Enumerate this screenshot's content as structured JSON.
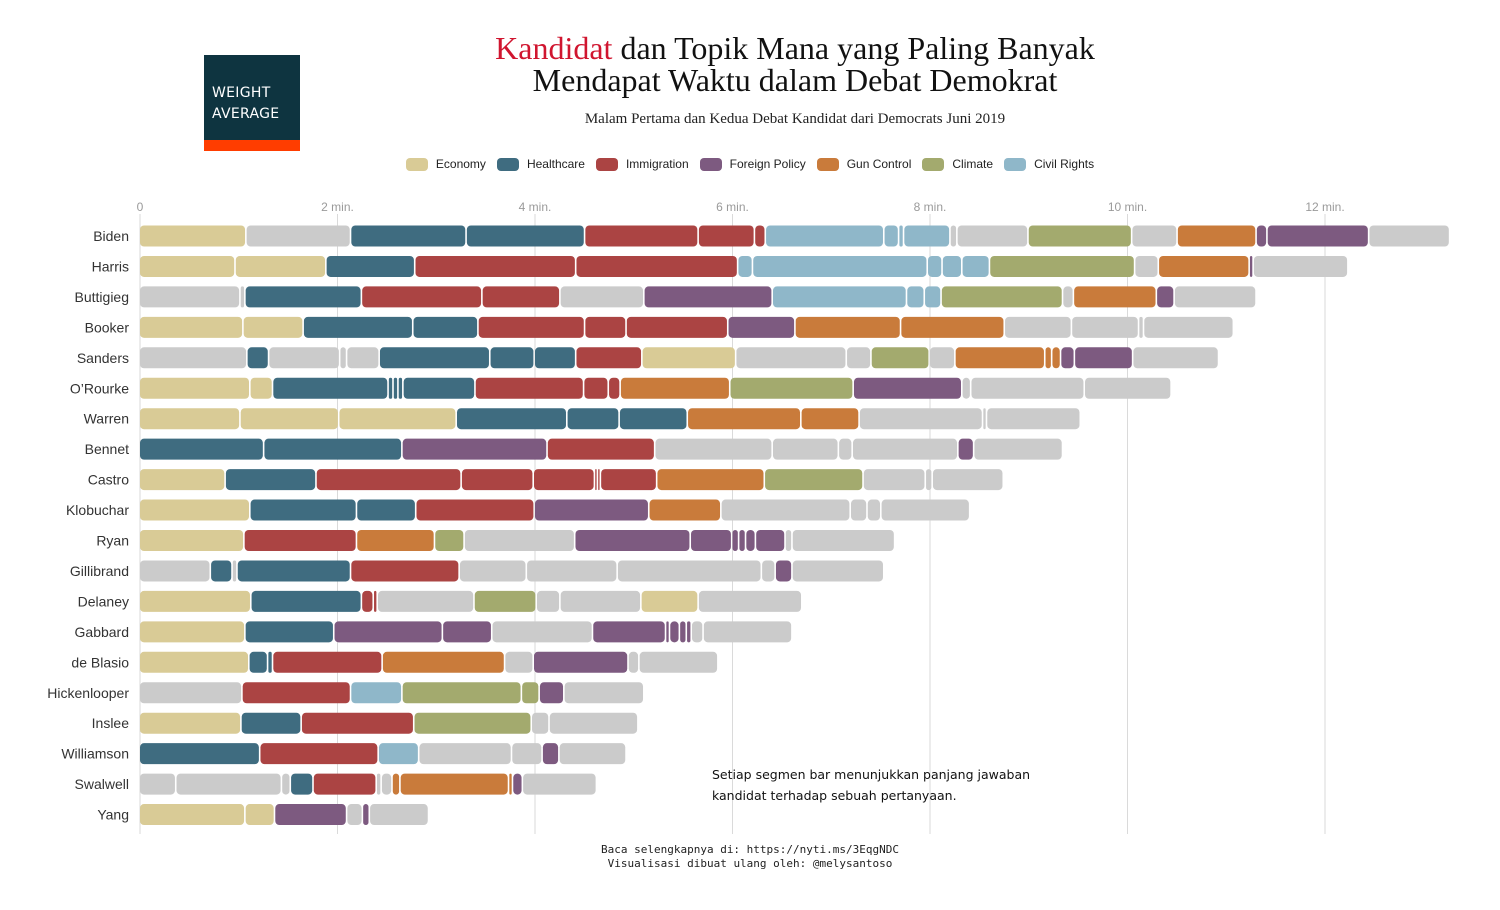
{
  "logo": {
    "line1": "WEIGHT",
    "line2": "AVERAGE"
  },
  "title": {
    "accent": "Kandidat",
    "rest": " dan Topik Mana yang Paling Banyak",
    "line2": "Mendapat Waktu dalam Debat Demokrat"
  },
  "subtitle": "Malam Pertama dan Kedua Debat Kandidat dari Democrats Juni 2019",
  "note": {
    "line1": "Setiap segmen bar menunjukkan panjang jawaban",
    "line2": "kandidat terhadap sebuah pertanyaan."
  },
  "footer": {
    "line1": "Baca selengkapnya di: https://nyti.ms/3EqgNDC",
    "line2": "Visualisasi dibuat ulang oleh: @melysantoso"
  },
  "chart_data": {
    "type": "bar",
    "orientation": "horizontal-stacked",
    "x_unit": "min.",
    "xlim": [
      0,
      13.3
    ],
    "x_ticks": [
      0,
      2,
      4,
      6,
      8,
      10,
      12
    ],
    "x_tick_labels": [
      "0",
      "2 min.",
      "4 min.",
      "6 min.",
      "8 min.",
      "10 min.",
      "12 min."
    ],
    "grid": true,
    "legend_position": "top",
    "topics": [
      {
        "key": "E",
        "name": "Economy",
        "color": "#d9cb96"
      },
      {
        "key": "H",
        "name": "Healthcare",
        "color": "#3f6c80"
      },
      {
        "key": "I",
        "name": "Immigration",
        "color": "#ab4443"
      },
      {
        "key": "F",
        "name": "Foreign Policy",
        "color": "#7d5a80"
      },
      {
        "key": "G",
        "name": "Gun Control",
        "color": "#c97b3b"
      },
      {
        "key": "C",
        "name": "Climate",
        "color": "#a3aa6e"
      },
      {
        "key": "R",
        "name": "Civil Rights",
        "color": "#8fb7c9"
      }
    ],
    "other_color": "#cbcbcb",
    "candidates": [
      {
        "name": "Biden",
        "segments": [
          [
            "E",
            1.08
          ],
          [
            "O",
            1.06
          ],
          [
            "H",
            1.17
          ],
          [
            "H",
            1.2
          ],
          [
            "I",
            1.15
          ],
          [
            "I",
            0.57
          ],
          [
            "I",
            0.11
          ],
          [
            "R",
            1.2
          ],
          [
            "R",
            0.15
          ],
          [
            "R",
            0.05
          ],
          [
            "R",
            0.47
          ],
          [
            "O",
            0.07
          ],
          [
            "O",
            0.72
          ],
          [
            "C",
            1.05
          ],
          [
            "O",
            0.46
          ],
          [
            "G",
            0.8
          ],
          [
            "F",
            0.11
          ],
          [
            "F",
            1.03
          ],
          [
            "O",
            0.82
          ]
        ]
      },
      {
        "name": "Harris",
        "segments": [
          [
            "E",
            0.97
          ],
          [
            "E",
            0.92
          ],
          [
            "H",
            0.9
          ],
          [
            "I",
            1.63
          ],
          [
            "I",
            1.64
          ],
          [
            "R",
            0.15
          ],
          [
            "R",
            1.77
          ],
          [
            "R",
            0.15
          ],
          [
            "R",
            0.2
          ],
          [
            "R",
            0.28
          ],
          [
            "C",
            1.47
          ],
          [
            "O",
            0.24
          ],
          [
            "G",
            0.92
          ],
          [
            "F",
            0.04
          ],
          [
            "O",
            0.96
          ]
        ]
      },
      {
        "name": "Buttigieg",
        "segments": [
          [
            "O",
            1.02
          ],
          [
            "O",
            0.05
          ],
          [
            "H",
            1.18
          ],
          [
            "I",
            1.22
          ],
          [
            "I",
            0.79
          ],
          [
            "O",
            0.85
          ],
          [
            "F",
            1.3
          ],
          [
            "R",
            1.36
          ],
          [
            "R",
            0.18
          ],
          [
            "R",
            0.17
          ],
          [
            "C",
            1.23
          ],
          [
            "O",
            0.11
          ],
          [
            "G",
            0.84
          ],
          [
            "F",
            0.18
          ],
          [
            "O",
            0.83
          ]
        ]
      },
      {
        "name": "Booker",
        "segments": [
          [
            "E",
            1.05
          ],
          [
            "E",
            0.61
          ],
          [
            "H",
            1.11
          ],
          [
            "H",
            0.66
          ],
          [
            "I",
            1.08
          ],
          [
            "I",
            0.42
          ],
          [
            "I",
            1.03
          ],
          [
            "F",
            0.68
          ],
          [
            "G",
            1.07
          ],
          [
            "G",
            1.05
          ],
          [
            "O",
            0.68
          ],
          [
            "O",
            0.68
          ],
          [
            "O",
            0.05
          ],
          [
            "O",
            0.91
          ]
        ]
      },
      {
        "name": "Sanders",
        "segments": [
          [
            "O",
            1.09
          ],
          [
            "H",
            0.22
          ],
          [
            "O",
            0.72
          ],
          [
            "O",
            0.07
          ],
          [
            "O",
            0.33
          ],
          [
            "H",
            1.12
          ],
          [
            "H",
            0.45
          ],
          [
            "H",
            0.42
          ],
          [
            "I",
            0.67
          ],
          [
            "E",
            0.95
          ],
          [
            "O",
            1.12
          ],
          [
            "O",
            0.25
          ],
          [
            "C",
            0.59
          ],
          [
            "O",
            0.26
          ],
          [
            "G",
            0.91
          ],
          [
            "G",
            0.07
          ],
          [
            "G",
            0.09
          ],
          [
            "F",
            0.14
          ],
          [
            "F",
            0.59
          ],
          [
            "O",
            0.87
          ]
        ]
      },
      {
        "name": "O’Rourke",
        "segments": [
          [
            "E",
            1.12
          ],
          [
            "E",
            0.23
          ],
          [
            "H",
            1.17
          ],
          [
            "H",
            0.05
          ],
          [
            "H",
            0.05
          ],
          [
            "H",
            0.05
          ],
          [
            "H",
            0.73
          ],
          [
            "I",
            1.1
          ],
          [
            "I",
            0.25
          ],
          [
            "I",
            0.12
          ],
          [
            "G",
            1.11
          ],
          [
            "C",
            1.25
          ],
          [
            "F",
            1.1
          ],
          [
            "O",
            0.09
          ],
          [
            "O",
            1.15
          ],
          [
            "O",
            0.88
          ]
        ]
      },
      {
        "name": "Warren",
        "segments": [
          [
            "E",
            1.02
          ],
          [
            "E",
            1.0
          ],
          [
            "E",
            1.19
          ],
          [
            "H",
            1.12
          ],
          [
            "H",
            0.53
          ],
          [
            "H",
            0.69
          ],
          [
            "G",
            1.15
          ],
          [
            "G",
            0.59
          ],
          [
            "O",
            1.25
          ],
          [
            "O",
            0.04
          ],
          [
            "O",
            0.95
          ]
        ]
      },
      {
        "name": "Bennet",
        "segments": [
          [
            "H",
            1.26
          ],
          [
            "H",
            1.4
          ],
          [
            "F",
            1.47
          ],
          [
            "I",
            1.09
          ],
          [
            "O",
            1.19
          ],
          [
            "O",
            0.67
          ],
          [
            "O",
            0.14
          ],
          [
            "O",
            1.07
          ],
          [
            "F",
            0.16
          ],
          [
            "O",
            0.9
          ]
        ]
      },
      {
        "name": "Castro",
        "segments": [
          [
            "E",
            0.87
          ],
          [
            "H",
            0.92
          ],
          [
            "I",
            1.47
          ],
          [
            "I",
            0.73
          ],
          [
            "I",
            0.62
          ],
          [
            "I",
            0.03
          ],
          [
            "I",
            0.03
          ],
          [
            "I",
            0.57
          ],
          [
            "G",
            1.09
          ],
          [
            "C",
            1.0
          ],
          [
            "O",
            0.63
          ],
          [
            "O",
            0.07
          ],
          [
            "O",
            0.72
          ]
        ]
      },
      {
        "name": "Klobuchar",
        "segments": [
          [
            "E",
            1.12
          ],
          [
            "H",
            1.08
          ],
          [
            "H",
            0.6
          ],
          [
            "I",
            1.2
          ],
          [
            "F",
            1.16
          ],
          [
            "G",
            0.73
          ],
          [
            "O",
            1.31
          ],
          [
            "O",
            0.17
          ],
          [
            "O",
            0.14
          ],
          [
            "O",
            0.9
          ]
        ]
      },
      {
        "name": "Ryan",
        "segments": [
          [
            "E",
            1.06
          ],
          [
            "I",
            1.14
          ],
          [
            "G",
            0.79
          ],
          [
            "C",
            0.3
          ],
          [
            "O",
            1.12
          ],
          [
            "F",
            1.17
          ],
          [
            "F",
            0.42
          ],
          [
            "F",
            0.07
          ],
          [
            "F",
            0.07
          ],
          [
            "F",
            0.1
          ],
          [
            "F",
            0.3
          ],
          [
            "O",
            0.07
          ],
          [
            "O",
            1.04
          ]
        ]
      },
      {
        "name": "Gillibrand",
        "segments": [
          [
            "O",
            0.72
          ],
          [
            "H",
            0.22
          ],
          [
            "O",
            0.05
          ],
          [
            "H",
            1.15
          ],
          [
            "I",
            1.1
          ],
          [
            "O",
            0.68
          ],
          [
            "O",
            0.92
          ],
          [
            "O",
            1.46
          ],
          [
            "O",
            0.14
          ],
          [
            "F",
            0.17
          ],
          [
            "O",
            0.93
          ]
        ]
      },
      {
        "name": "Delaney",
        "segments": [
          [
            "E",
            1.13
          ],
          [
            "H",
            1.12
          ],
          [
            "I",
            0.12
          ],
          [
            "I",
            0.04
          ],
          [
            "O",
            0.98
          ],
          [
            "C",
            0.63
          ],
          [
            "O",
            0.24
          ],
          [
            "O",
            0.82
          ],
          [
            "E",
            0.58
          ],
          [
            "O",
            1.05
          ]
        ]
      },
      {
        "name": "Gabbard",
        "segments": [
          [
            "E",
            1.07
          ],
          [
            "H",
            0.9
          ],
          [
            "F",
            1.1
          ],
          [
            "F",
            0.5
          ],
          [
            "O",
            1.02
          ],
          [
            "F",
            0.74
          ],
          [
            "F",
            0.04
          ],
          [
            "F",
            0.1
          ],
          [
            "F",
            0.07
          ],
          [
            "F",
            0.05
          ],
          [
            "O",
            0.12
          ],
          [
            "O",
            0.9
          ]
        ]
      },
      {
        "name": "de Blasio",
        "segments": [
          [
            "E",
            1.11
          ],
          [
            "H",
            0.19
          ],
          [
            "H",
            0.05
          ],
          [
            "I",
            1.11
          ],
          [
            "G",
            1.24
          ],
          [
            "O",
            0.29
          ],
          [
            "F",
            0.96
          ],
          [
            "O",
            0.11
          ],
          [
            "O",
            0.8
          ]
        ]
      },
      {
        "name": "Hickenlooper",
        "segments": [
          [
            "O",
            1.04
          ],
          [
            "I",
            1.1
          ],
          [
            "R",
            0.52
          ],
          [
            "C",
            1.21
          ],
          [
            "C",
            0.18
          ],
          [
            "F",
            0.25
          ],
          [
            "O",
            0.81
          ]
        ]
      },
      {
        "name": "Inslee",
        "segments": [
          [
            "E",
            1.03
          ],
          [
            "H",
            0.61
          ],
          [
            "I",
            1.14
          ],
          [
            "C",
            1.19
          ],
          [
            "O",
            0.18
          ],
          [
            "O",
            0.9
          ]
        ]
      },
      {
        "name": "Williamson",
        "segments": [
          [
            "H",
            1.22
          ],
          [
            "I",
            1.2
          ],
          [
            "R",
            0.41
          ],
          [
            "O",
            0.94
          ],
          [
            "O",
            0.31
          ],
          [
            "F",
            0.17
          ],
          [
            "O",
            0.68
          ]
        ]
      },
      {
        "name": "Swalwell",
        "segments": [
          [
            "O",
            0.37
          ],
          [
            "O",
            1.07
          ],
          [
            "O",
            0.09
          ],
          [
            "H",
            0.23
          ],
          [
            "I",
            0.64
          ],
          [
            "O",
            0.05
          ],
          [
            "O",
            0.11
          ],
          [
            "G",
            0.08
          ],
          [
            "G",
            1.1
          ],
          [
            "G",
            0.04
          ],
          [
            "F",
            0.1
          ],
          [
            "O",
            0.75
          ]
        ]
      },
      {
        "name": "Yang",
        "segments": [
          [
            "E",
            1.07
          ],
          [
            "E",
            0.3
          ],
          [
            "F",
            0.73
          ],
          [
            "O",
            0.16
          ],
          [
            "F",
            0.07
          ],
          [
            "O",
            0.6
          ]
        ]
      }
    ]
  }
}
